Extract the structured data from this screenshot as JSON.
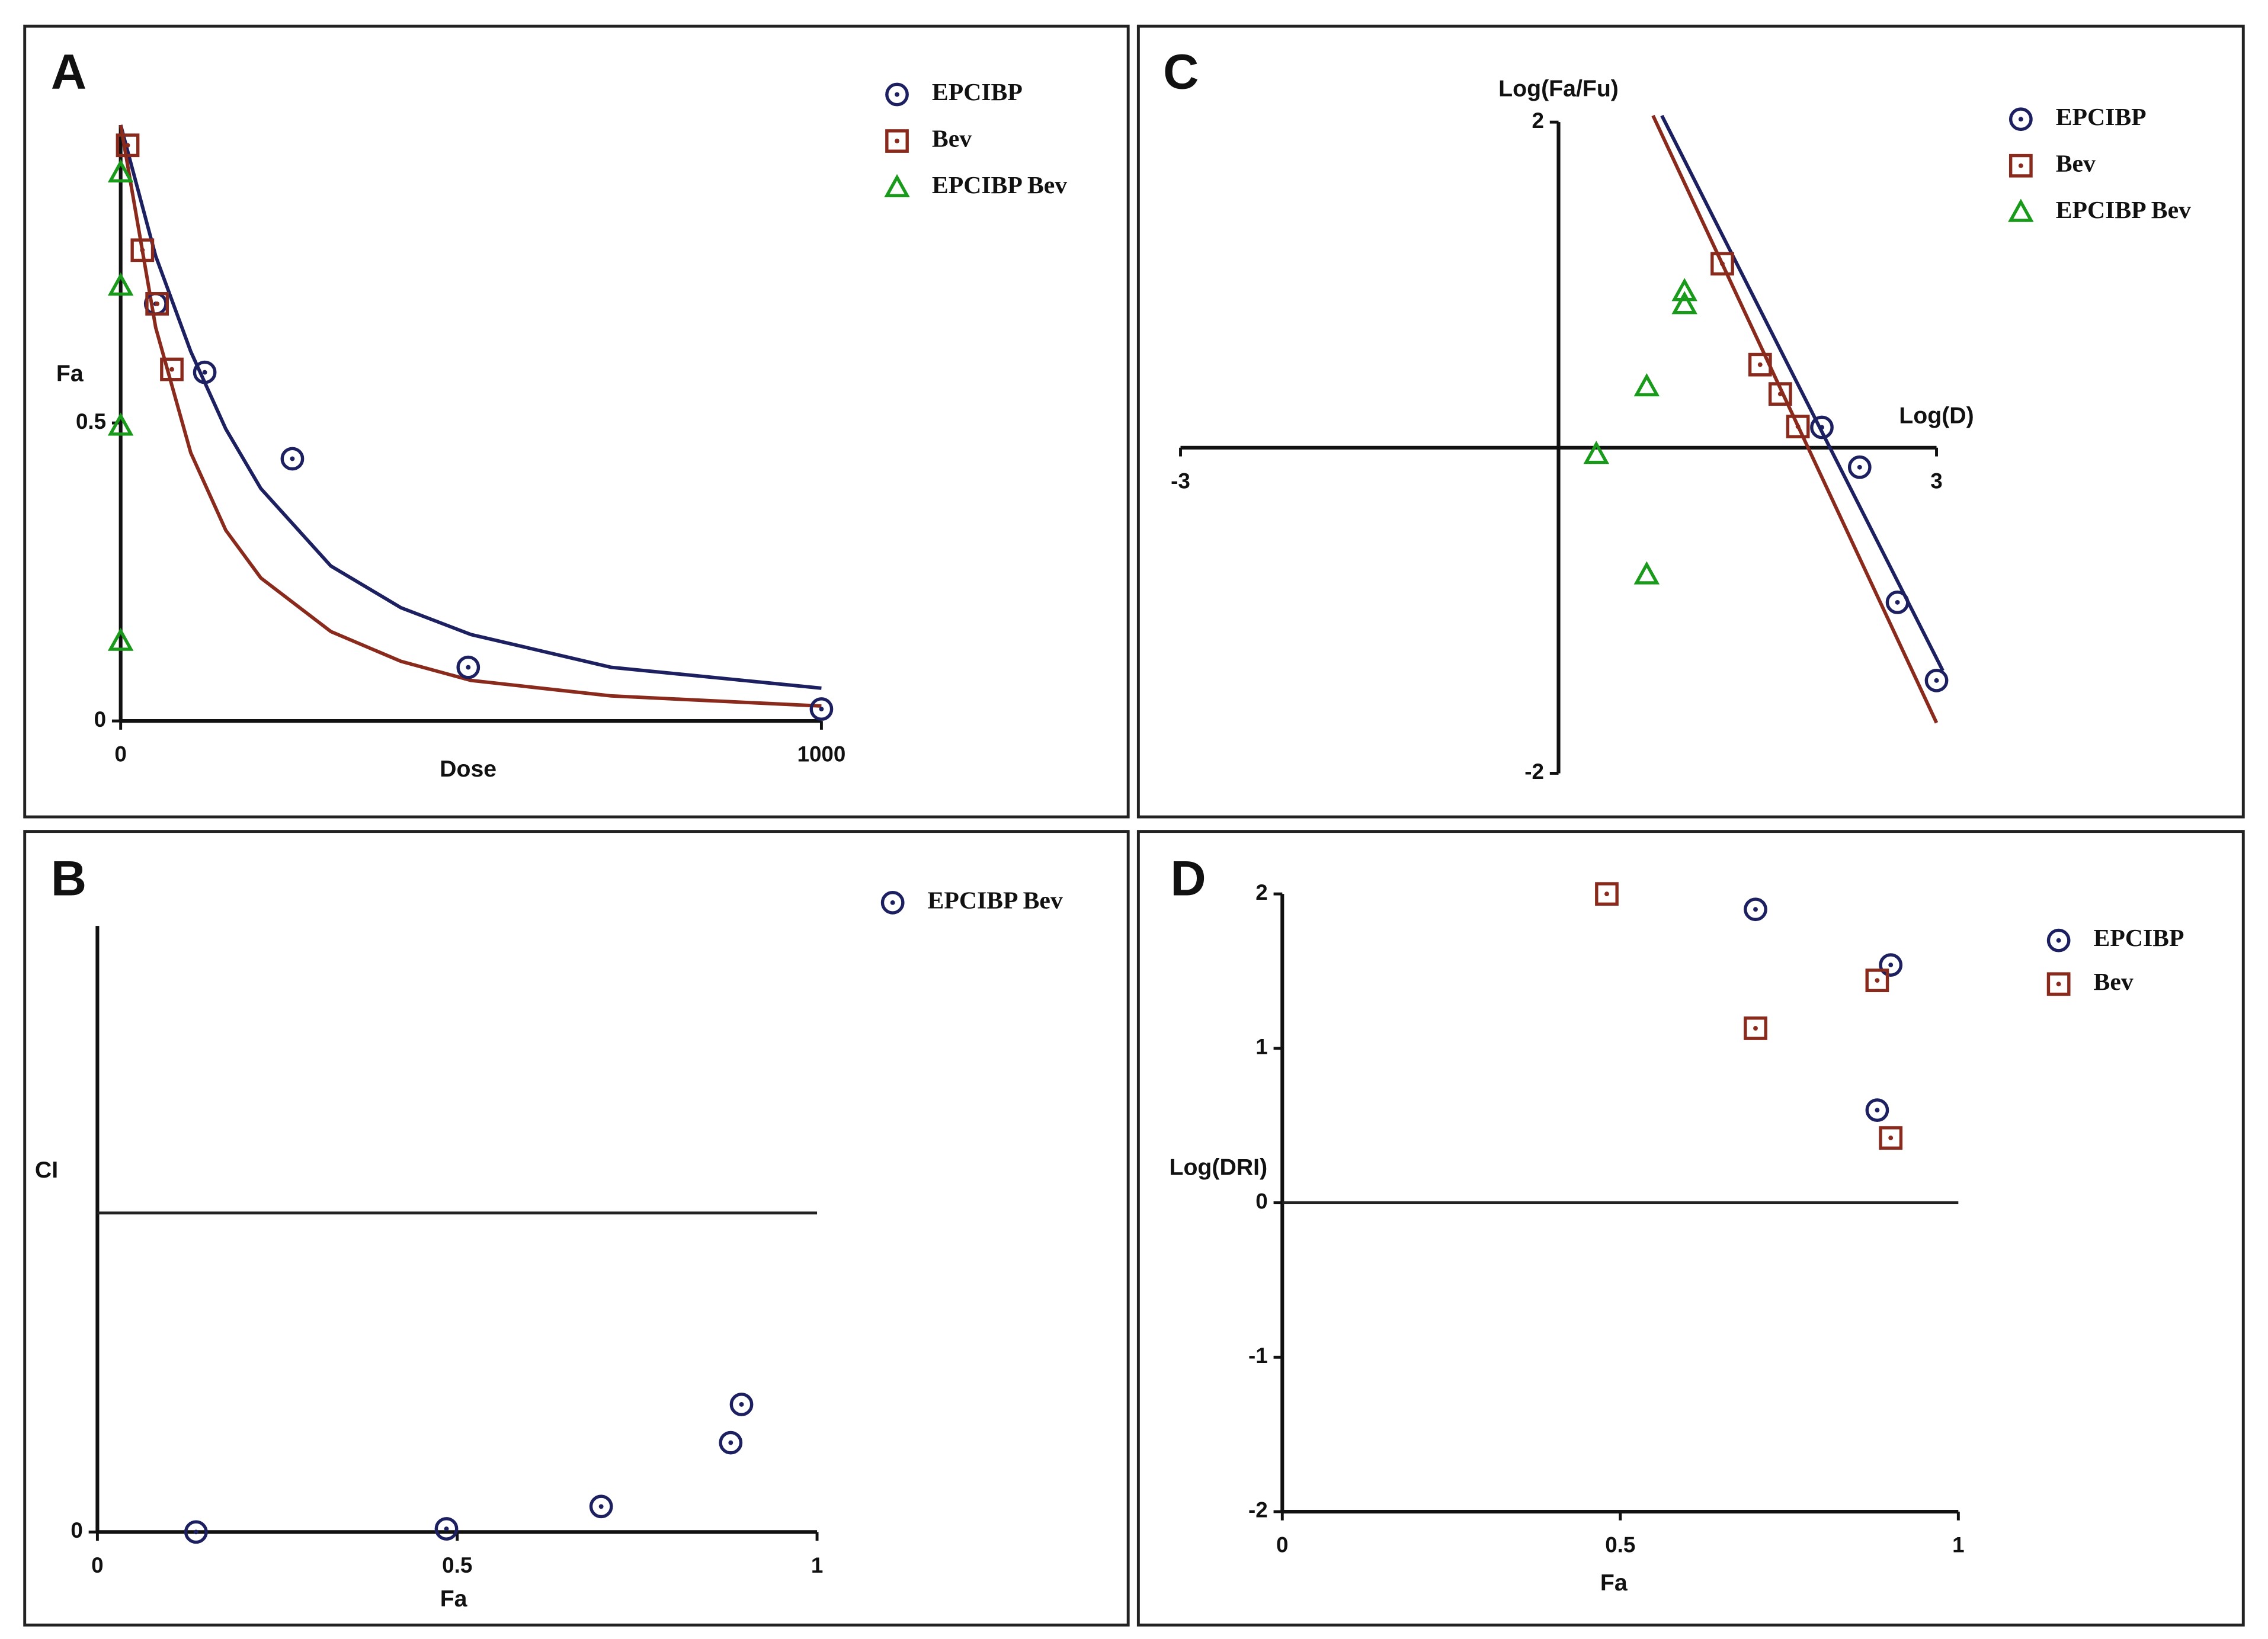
{
  "chart_data": [
    {
      "type": "scatter",
      "panel": "A",
      "xlabel": "Dose",
      "ylabel": "Fa",
      "xlim": [
        0,
        1000
      ],
      "ylim": [
        0,
        1
      ],
      "xticks": [
        0,
        1000
      ],
      "yticks": [
        0,
        0.5
      ],
      "series": [
        {
          "name": "EPCIBP",
          "marker": "circle",
          "color": "#1c2060",
          "x": [
            50,
            120,
            245,
            496,
            1000
          ],
          "values": [
            0.7,
            0.585,
            0.44,
            0.09,
            0.02
          ]
        },
        {
          "name": "Bev",
          "marker": "square",
          "color": "#8a2a1c",
          "x": [
            10,
            31,
            52,
            73
          ],
          "values": [
            0.966,
            0.79,
            0.7,
            0.59
          ]
        },
        {
          "name": "EPCIBP Bev",
          "marker": "triangle",
          "color": "#1a9a1a",
          "x": [
            0,
            0,
            0,
            0
          ],
          "values": [
            0.92,
            0.73,
            0.495,
            0.134
          ]
        }
      ],
      "fit_lines": [
        {
          "color": "#1c2060",
          "x": [
            0,
            50,
            100,
            150,
            200,
            300,
            400,
            500,
            700,
            1000
          ],
          "values": [
            1.0,
            0.78,
            0.62,
            0.49,
            0.39,
            0.26,
            0.19,
            0.145,
            0.09,
            0.055
          ]
        },
        {
          "color": "#8a2a1c",
          "x": [
            0,
            50,
            100,
            150,
            200,
            300,
            400,
            500,
            700,
            1000
          ],
          "values": [
            1.0,
            0.66,
            0.45,
            0.32,
            0.24,
            0.15,
            0.1,
            0.068,
            0.042,
            0.025
          ]
        }
      ]
    },
    {
      "type": "scatter",
      "panel": "C",
      "xlabel": "Log(D)",
      "ylabel": "Log(Fa/Fu)",
      "xlim": [
        -3,
        3
      ],
      "ylim": [
        -2,
        2
      ],
      "xticks": [
        -3,
        3
      ],
      "yticks": [
        -2,
        2
      ],
      "series": [
        {
          "name": "EPCIBP",
          "marker": "circle",
          "color": "#1c2060",
          "x": [
            2.09,
            2.39,
            2.69,
            3.0
          ],
          "values": [
            0.125,
            -0.12,
            -0.95,
            -1.43
          ]
        },
        {
          "name": "Bev",
          "marker": "square",
          "color": "#8a2a1c",
          "x": [
            1.3,
            1.6,
            1.76,
            1.9
          ],
          "values": [
            1.13,
            0.51,
            0.33,
            0.13
          ]
        },
        {
          "name": "EPCIBP Bev",
          "marker": "triangle",
          "color": "#1a9a1a",
          "x": [
            1.0,
            1.0,
            0.7,
            0.3,
            0.7
          ],
          "values": [
            0.96,
            0.88,
            0.375,
            -0.04,
            -0.78
          ]
        }
      ],
      "fit_lines": [
        {
          "color": "#1c2060",
          "x": [
            0.82,
            3.05
          ],
          "values": [
            2.04,
            -1.37
          ]
        },
        {
          "color": "#8a2a1c",
          "x": [
            0.75,
            3.0
          ],
          "values": [
            2.04,
            -1.69
          ]
        }
      ]
    },
    {
      "type": "scatter",
      "panel": "B",
      "xlabel": "Fa",
      "ylabel": "CI",
      "xlim": [
        0,
        1
      ],
      "ylim": [
        0,
        1.9
      ],
      "xticks": [
        0,
        0.5,
        1
      ],
      "yticks": [
        0
      ],
      "hlines": [
        1
      ],
      "series": [
        {
          "name": "EPCIBP Bev",
          "marker": "circle",
          "color": "#1c2060",
          "x": [
            0.137,
            0.485,
            0.7,
            0.88,
            0.895
          ],
          "values": [
            0,
            0.01,
            0.08,
            0.28,
            0.4
          ]
        }
      ]
    },
    {
      "type": "scatter",
      "panel": "D",
      "xlabel": "Fa",
      "ylabel": "Log(DRI)",
      "xlim": [
        0,
        1
      ],
      "ylim": [
        -2,
        2
      ],
      "xticks": [
        0,
        0.5,
        1
      ],
      "yticks": [
        -2,
        -1,
        0,
        1,
        2
      ],
      "hlines": [
        0
      ],
      "series": [
        {
          "name": "EPCIBP",
          "marker": "circle",
          "color": "#1c2060",
          "x": [
            0.7,
            0.9,
            0.88
          ],
          "values": [
            1.9,
            1.54,
            0.6
          ]
        },
        {
          "name": "Bev",
          "marker": "square",
          "color": "#8a2a1c",
          "x": [
            0.48,
            0.7,
            0.88,
            0.9
          ],
          "values": [
            2.0,
            1.13,
            1.44,
            0.42
          ]
        }
      ]
    }
  ]
}
